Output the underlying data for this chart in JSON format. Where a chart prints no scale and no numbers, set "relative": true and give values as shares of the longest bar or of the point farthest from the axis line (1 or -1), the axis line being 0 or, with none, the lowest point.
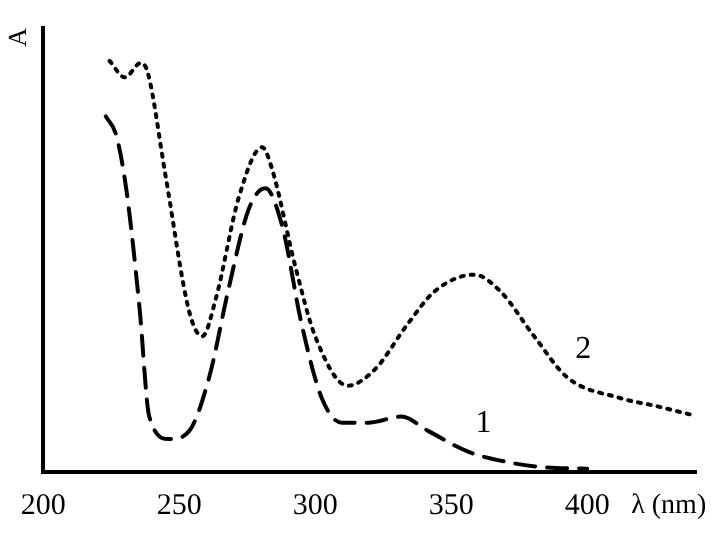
{
  "chart_data": {
    "type": "line",
    "xlabel": "λ (nm)",
    "ylabel": "A",
    "relative": true,
    "xlim": [
      200,
      440
    ],
    "xticks": [
      200,
      250,
      300,
      350,
      400
    ],
    "grid": false,
    "legend": false,
    "marker": "none",
    "series": [
      {
        "name": "1",
        "color": "#000000",
        "line_style": "dashed",
        "x": [
          223,
          226.8,
          230.5,
          235.4,
          239,
          246.3,
          253.7,
          261,
          268.3,
          275.6,
          281.7,
          287.8,
          295,
          302.4,
          309.8,
          319.5,
          331.7,
          341.5,
          356,
          370.7,
          385,
          400
        ],
        "values": [
          0.865,
          0.82,
          0.69,
          0.4,
          0.135,
          0.08,
          0.1,
          0.23,
          0.45,
          0.64,
          0.69,
          0.6,
          0.36,
          0.18,
          0.12,
          0.12,
          0.135,
          0.1,
          0.05,
          0.024,
          0.011,
          0.008
        ]
      },
      {
        "name": "2",
        "color": "#000000",
        "line_style": "dotted",
        "x": [
          224.4,
          230,
          235.9,
          238.5,
          245,
          253.7,
          258.5,
          263.4,
          272,
          280.5,
          284,
          292.7,
          300,
          312,
          322,
          334,
          344,
          358.5,
          368,
          380.5,
          392.7,
          412,
          425.6,
          437.8
        ],
        "values": [
          1,
          0.96,
          0.995,
          0.97,
          0.72,
          0.39,
          0.33,
          0.42,
          0.67,
          0.79,
          0.74,
          0.5,
          0.33,
          0.21,
          0.25,
          0.36,
          0.44,
          0.48,
          0.44,
          0.33,
          0.23,
          0.18,
          0.16,
          0.14
        ]
      }
    ]
  }
}
